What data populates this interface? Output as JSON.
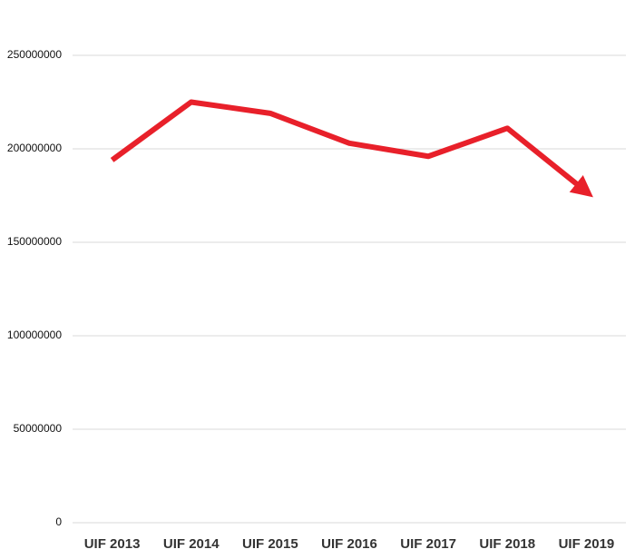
{
  "chart_data": {
    "type": "line",
    "categories": [
      "UIF 2013",
      "UIF 2014",
      "UIF 2015",
      "UIF 2016",
      "UIF 2017",
      "UIF 2018",
      "UIF 2019"
    ],
    "values": [
      194000000,
      225000000,
      219000000,
      203000000,
      196000000,
      211000000,
      177000000
    ],
    "color": "#e8202a",
    "ylim": [
      0,
      250000000
    ],
    "yticks": [
      0,
      50000000,
      100000000,
      150000000,
      200000000,
      250000000
    ],
    "grid": true
  }
}
